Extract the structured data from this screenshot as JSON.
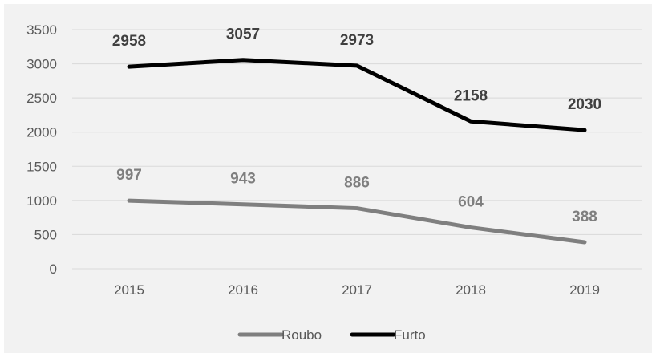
{
  "chart_data": {
    "type": "line",
    "categories": [
      "2015",
      "2016",
      "2017",
      "2018",
      "2019"
    ],
    "ylim": [
      0,
      3500
    ],
    "yticks": [
      0,
      500,
      1000,
      1500,
      2000,
      2500,
      3000,
      3500
    ],
    "grid": true,
    "legend_position": "bottom",
    "series": [
      {
        "name": "Roubo",
        "values": [
          997,
          943,
          886,
          604,
          388
        ],
        "color": "#7f7f7f",
        "label_color": "#7f7f7f"
      },
      {
        "name": "Furto",
        "values": [
          2958,
          3057,
          2973,
          2158,
          2030
        ],
        "color": "#000000",
        "label_color": "#404040"
      }
    ]
  }
}
